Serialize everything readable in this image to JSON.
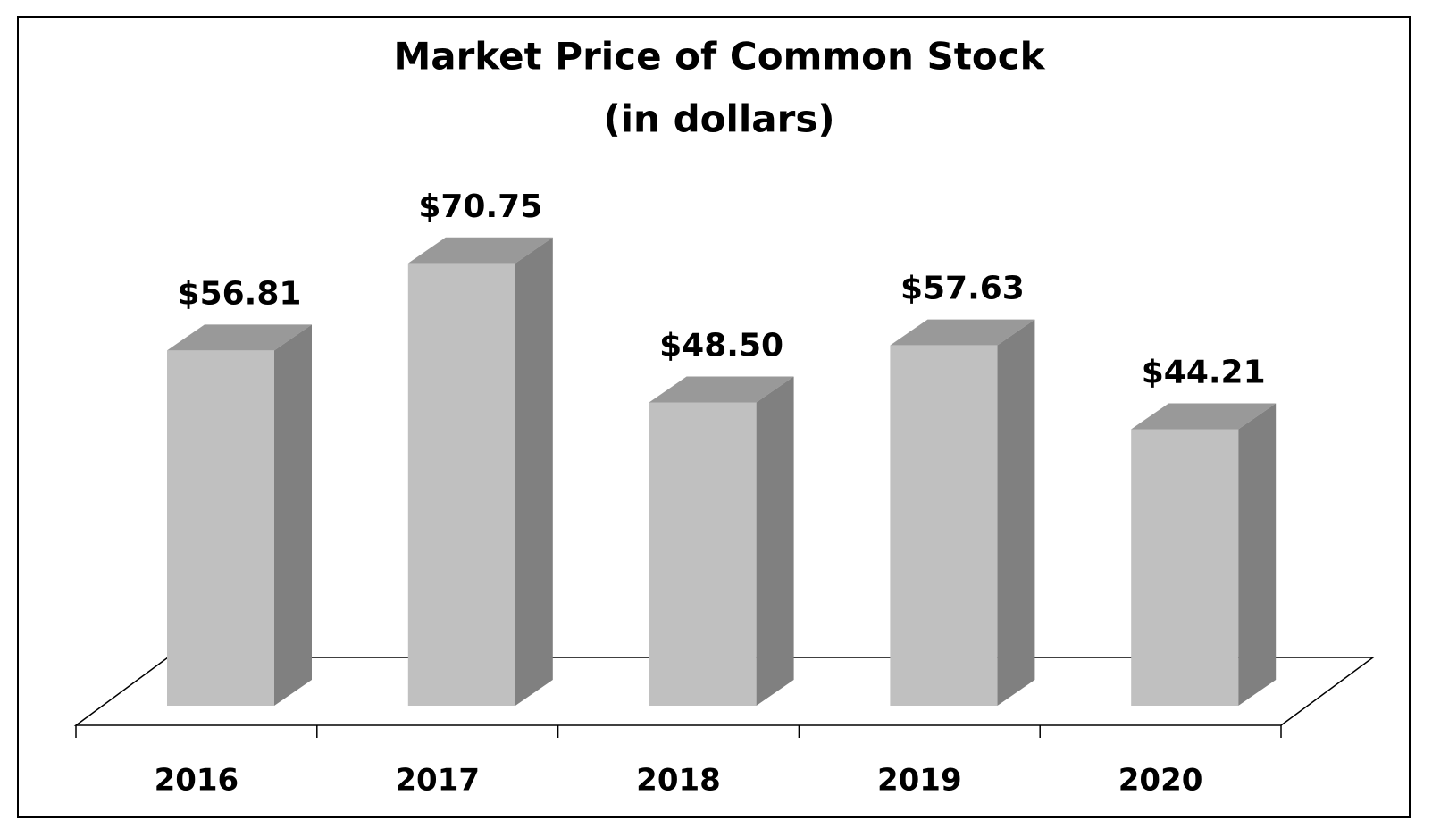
{
  "chart_data": {
    "type": "bar3d",
    "title": "Market Price of Common Stock",
    "subtitle": "(in dollars)",
    "categories": [
      "2016",
      "2017",
      "2018",
      "2019",
      "2020"
    ],
    "values": [
      56.81,
      70.75,
      48.5,
      57.63,
      44.21
    ],
    "value_labels": [
      "$56.81",
      "$70.75",
      "$48.50",
      "$57.63",
      "$44.21"
    ],
    "color": "#c0c0c0"
  }
}
